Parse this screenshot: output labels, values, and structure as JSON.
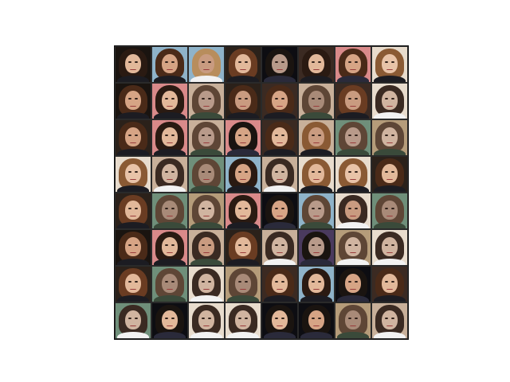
{
  "figure": {
    "rows": 8,
    "cols": 8
  },
  "palette": {
    "bg": [
      "#1a1410",
      "#2b211a",
      "#c8b09a",
      "#8fb3c9",
      "#d98a8a",
      "#3b2a22",
      "#0d0d12",
      "#e8dccd",
      "#6f8f7a",
      "#4a3a5e",
      "#b59c7a",
      "#222"
    ],
    "skin": [
      "#e2b89a",
      "#d6a485",
      "#c99b80",
      "#b89a8a",
      "#e8c3a8",
      "#a88a78",
      "#d0b4a0"
    ],
    "hair": [
      "#4a2a18",
      "#2a1a12",
      "#6a3c22",
      "#1a1410",
      "#8a5a34",
      "#3a2a22",
      "#5e4636",
      "#b88d5c"
    ],
    "shirt": [
      "#1c1c22",
      "#2a2a3a",
      "#f2f2f2",
      "#3a4a3a",
      "#5a2a2a",
      "#1a1a1a"
    ]
  },
  "tiles": [
    [
      0,
      0,
      1,
      0
    ],
    [
      3,
      1,
      0,
      0
    ],
    [
      3,
      2,
      7,
      2
    ],
    [
      1,
      0,
      2,
      0
    ],
    [
      6,
      3,
      3,
      1
    ],
    [
      5,
      0,
      1,
      0
    ],
    [
      4,
      1,
      0,
      1
    ],
    [
      7,
      4,
      4,
      0
    ],
    [
      0,
      1,
      0,
      0
    ],
    [
      4,
      0,
      1,
      0
    ],
    [
      2,
      3,
      6,
      3
    ],
    [
      1,
      2,
      0,
      0
    ],
    [
      5,
      1,
      0,
      0
    ],
    [
      2,
      5,
      6,
      3
    ],
    [
      5,
      2,
      2,
      0
    ],
    [
      7,
      6,
      5,
      2
    ],
    [
      1,
      1,
      0,
      0
    ],
    [
      4,
      0,
      1,
      0
    ],
    [
      2,
      3,
      6,
      3
    ],
    [
      4,
      1,
      3,
      1
    ],
    [
      5,
      0,
      0,
      0
    ],
    [
      2,
      2,
      4,
      0
    ],
    [
      8,
      3,
      6,
      3
    ],
    [
      10,
      6,
      6,
      3
    ],
    [
      7,
      4,
      4,
      0
    ],
    [
      2,
      6,
      5,
      2
    ],
    [
      8,
      5,
      6,
      3
    ],
    [
      3,
      1,
      1,
      0
    ],
    [
      2,
      6,
      5,
      2
    ],
    [
      7,
      0,
      4,
      0
    ],
    [
      7,
      4,
      4,
      0
    ],
    [
      1,
      0,
      0,
      0
    ],
    [
      1,
      0,
      2,
      0
    ],
    [
      8,
      5,
      6,
      3
    ],
    [
      10,
      6,
      6,
      3
    ],
    [
      4,
      0,
      1,
      0
    ],
    [
      6,
      1,
      3,
      1
    ],
    [
      3,
      3,
      6,
      3
    ],
    [
      7,
      2,
      5,
      2
    ],
    [
      8,
      5,
      6,
      3
    ],
    [
      0,
      1,
      0,
      0
    ],
    [
      4,
      0,
      1,
      0
    ],
    [
      2,
      2,
      5,
      3
    ],
    [
      1,
      0,
      2,
      0
    ],
    [
      2,
      6,
      5,
      2
    ],
    [
      9,
      3,
      3,
      1
    ],
    [
      10,
      6,
      6,
      2
    ],
    [
      7,
      6,
      5,
      2
    ],
    [
      1,
      0,
      2,
      0
    ],
    [
      8,
      5,
      6,
      3
    ],
    [
      7,
      6,
      5,
      2
    ],
    [
      10,
      5,
      6,
      3
    ],
    [
      5,
      0,
      0,
      0
    ],
    [
      3,
      0,
      1,
      0
    ],
    [
      6,
      1,
      3,
      1
    ],
    [
      5,
      0,
      0,
      0
    ],
    [
      8,
      6,
      5,
      2
    ],
    [
      6,
      0,
      3,
      1
    ],
    [
      7,
      6,
      5,
      2
    ],
    [
      7,
      6,
      5,
      2
    ],
    [
      6,
      0,
      3,
      1
    ],
    [
      6,
      1,
      3,
      1
    ],
    [
      10,
      5,
      6,
      3
    ],
    [
      2,
      6,
      5,
      2
    ]
  ]
}
